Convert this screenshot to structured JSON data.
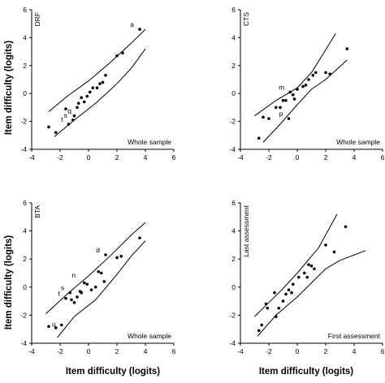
{
  "shared": {
    "ylabel": "Item difficulty (logits)",
    "xlabel": "Item difficulty (logits)"
  },
  "chart_data": [
    {
      "type": "scatter",
      "title": "",
      "panel_label": "DRF",
      "corner_label": "Whole sample",
      "xlim": [
        -4,
        6
      ],
      "ylim": [
        -4,
        6
      ],
      "xticks": [
        -4,
        -2,
        0,
        2,
        4,
        6
      ],
      "yticks": [
        -4,
        -2,
        0,
        2,
        4,
        6
      ],
      "points": [
        [
          -2.8,
          -2.4
        ],
        [
          -2.3,
          -2.8
        ],
        [
          -1.6,
          -1.1
        ],
        [
          -1.4,
          -2.2
        ],
        [
          -1.1,
          -1.9
        ],
        [
          -1.0,
          -1.6
        ],
        [
          -0.8,
          -1.0
        ],
        [
          -0.7,
          -0.7
        ],
        [
          -0.5,
          -0.3
        ],
        [
          -0.3,
          -0.6
        ],
        [
          -0.1,
          -0.2
        ],
        [
          0.1,
          0.1
        ],
        [
          0.3,
          0.4
        ],
        [
          0.6,
          0.4
        ],
        [
          0.8,
          0.7
        ],
        [
          1.0,
          0.8
        ],
        [
          1.2,
          1.3
        ],
        [
          2.0,
          2.7
        ],
        [
          2.4,
          2.9
        ],
        [
          3.6,
          4.6
        ]
      ],
      "control_upper": [
        [
          -2.8,
          -1.3
        ],
        [
          -1.5,
          -0.2
        ],
        [
          0,
          0.9
        ],
        [
          1.5,
          2.2
        ],
        [
          3,
          3.6
        ],
        [
          4,
          4.6
        ]
      ],
      "control_lower": [
        [
          -2.4,
          -3.1
        ],
        [
          -1,
          -1.9
        ],
        [
          0.5,
          -0.7
        ],
        [
          2,
          0.7
        ],
        [
          3,
          1.8
        ],
        [
          4,
          3.2
        ]
      ],
      "annotations": [
        {
          "text": "a",
          "x": 3.6,
          "y": 4.6
        },
        {
          "text": "t",
          "x": -1.4,
          "y": -2.2
        },
        {
          "text": "s",
          "x": -1.1,
          "y": -1.9
        },
        {
          "text": "q",
          "x": -0.8,
          "y": -1.6
        }
      ]
    },
    {
      "type": "scatter",
      "title": "",
      "panel_label": "CTS",
      "corner_label": "Whole sample",
      "xlim": [
        -4,
        6
      ],
      "ylim": [
        -4,
        6
      ],
      "xticks": [
        -4,
        -2,
        0,
        2,
        4,
        6
      ],
      "yticks": [
        -4,
        -2,
        0,
        2,
        4,
        6
      ],
      "points": [
        [
          -2.7,
          -3.2
        ],
        [
          -2.4,
          -1.7
        ],
        [
          -2.0,
          -1.8
        ],
        [
          -1.5,
          -1.0
        ],
        [
          -1.2,
          -1.0
        ],
        [
          -1.0,
          -0.5
        ],
        [
          -0.8,
          -0.5
        ],
        [
          -0.6,
          -1.8
        ],
        [
          -0.5,
          0.1
        ],
        [
          -0.3,
          -0.1
        ],
        [
          -0.2,
          -0.4
        ],
        [
          0.0,
          0.3
        ],
        [
          0.4,
          0.5
        ],
        [
          0.6,
          0.6
        ],
        [
          0.8,
          1.0
        ],
        [
          1.1,
          1.3
        ],
        [
          1.3,
          1.5
        ],
        [
          2.0,
          1.5
        ],
        [
          2.3,
          1.4
        ],
        [
          3.5,
          3.2
        ]
      ],
      "control_upper": [
        [
          -3,
          -1.6
        ],
        [
          -1.5,
          -0.5
        ],
        [
          0,
          0.4
        ],
        [
          1,
          1.5
        ],
        [
          1.8,
          2.8
        ],
        [
          2.7,
          4.3
        ]
      ],
      "control_lower": [
        [
          -2.4,
          -3.5
        ],
        [
          -1.2,
          -2.2
        ],
        [
          0,
          -0.8
        ],
        [
          1,
          0.3
        ],
        [
          2,
          1.0
        ],
        [
          3.5,
          2.4
        ]
      ],
      "annotations": [
        {
          "text": "m",
          "x": -0.5,
          "y": 0.1
        },
        {
          "text": "p",
          "x": -0.6,
          "y": -1.8
        }
      ]
    },
    {
      "type": "scatter",
      "title": "",
      "panel_label": "BTA",
      "corner_label": "Whole sample",
      "xlim": [
        -4,
        6
      ],
      "ylim": [
        -4,
        6
      ],
      "xticks": [
        -4,
        -2,
        0,
        2,
        4,
        6
      ],
      "yticks": [
        -4,
        -2,
        0,
        2,
        4,
        6
      ],
      "points": [
        [
          -2.8,
          -2.8
        ],
        [
          -2.3,
          -2.9
        ],
        [
          -1.9,
          -2.7
        ],
        [
          -1.6,
          -0.8
        ],
        [
          -1.3,
          -0.4
        ],
        [
          -1.2,
          -0.9
        ],
        [
          -1.0,
          -1.1
        ],
        [
          -0.8,
          -0.7
        ],
        [
          -0.6,
          -0.3
        ],
        [
          -0.5,
          -0.4
        ],
        [
          -0.3,
          0.3
        ],
        [
          -0.1,
          0.2
        ],
        [
          0.2,
          -0.2
        ],
        [
          0.5,
          0.0
        ],
        [
          0.7,
          1.1
        ],
        [
          0.9,
          1.0
        ],
        [
          1.1,
          0.4
        ],
        [
          1.2,
          2.3
        ],
        [
          2.0,
          2.1
        ],
        [
          2.3,
          2.2
        ],
        [
          3.6,
          3.5
        ]
      ],
      "control_upper": [
        [
          -3,
          -1.9
        ],
        [
          -1.5,
          -0.5
        ],
        [
          0,
          0.8
        ],
        [
          1.5,
          2.2
        ],
        [
          3,
          3.7
        ],
        [
          4,
          4.6
        ]
      ],
      "control_lower": [
        [
          -2.2,
          -3.6
        ],
        [
          -1,
          -2.1
        ],
        [
          0.5,
          -0.9
        ],
        [
          2,
          0.9
        ],
        [
          3,
          2.2
        ],
        [
          4,
          3.3
        ]
      ],
      "annotations": [
        {
          "text": "d",
          "x": 1.2,
          "y": 2.3
        },
        {
          "text": "n",
          "x": -0.5,
          "y": 0.5
        },
        {
          "text": "s",
          "x": -1.3,
          "y": -0.4
        },
        {
          "text": "t",
          "x": -1.6,
          "y": -0.8
        },
        {
          "text": "u",
          "x": -1.9,
          "y": -3.0
        }
      ]
    },
    {
      "type": "scatter",
      "title": "",
      "panel_label": "Last assessment",
      "corner_label": "First assessment",
      "xlim": [
        -4,
        6
      ],
      "ylim": [
        -4,
        6
      ],
      "xticks": [
        -4,
        -2,
        0,
        2,
        4,
        6
      ],
      "yticks": [
        -4,
        -2,
        0,
        2,
        4,
        6
      ],
      "points": [
        [
          -2.7,
          -3.1
        ],
        [
          -2.5,
          -2.7
        ],
        [
          -2.2,
          -1.2
        ],
        [
          -2.1,
          -1.5
        ],
        [
          -1.6,
          -0.4
        ],
        [
          -1.5,
          -2.1
        ],
        [
          -1.3,
          -1.5
        ],
        [
          -1.0,
          -1.0
        ],
        [
          -0.8,
          -0.5
        ],
        [
          -0.6,
          -0.2
        ],
        [
          -0.4,
          -0.4
        ],
        [
          -0.3,
          0.2
        ],
        [
          0.1,
          0.7
        ],
        [
          0.5,
          1.0
        ],
        [
          0.7,
          0.7
        ],
        [
          0.8,
          1.6
        ],
        [
          1.0,
          1.5
        ],
        [
          1.2,
          1.3
        ],
        [
          2.0,
          3.0
        ],
        [
          2.6,
          2.5
        ],
        [
          3.4,
          4.3
        ]
      ],
      "control_upper": [
        [
          -3,
          -2.1
        ],
        [
          -2,
          -1.1
        ],
        [
          -1,
          -0.1
        ],
        [
          0,
          1.0
        ],
        [
          1.5,
          2.8
        ],
        [
          2.8,
          5.2
        ]
      ],
      "control_lower": [
        [
          -2.8,
          -3.5
        ],
        [
          -1.5,
          -2.0
        ],
        [
          0,
          -0.7
        ],
        [
          1,
          0.3
        ],
        [
          2,
          1.3
        ],
        [
          3,
          1.9
        ],
        [
          4.8,
          2.6
        ]
      ]
    }
  ]
}
